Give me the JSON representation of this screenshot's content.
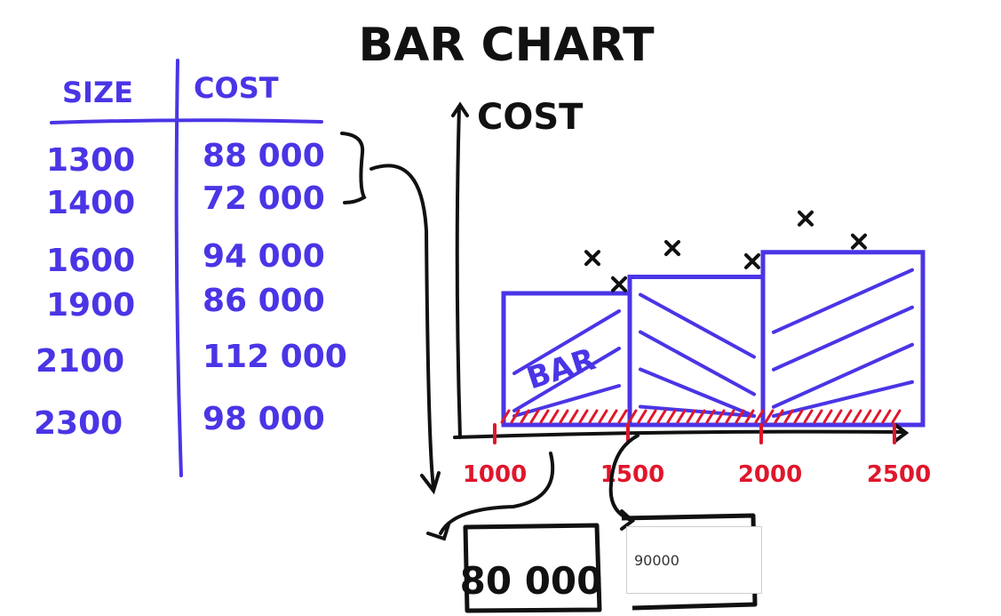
{
  "title": "BAR CHART",
  "table": {
    "headers": [
      "SIZE",
      "COST"
    ],
    "rows": [
      [
        "1300",
        "88 000"
      ],
      [
        "1400",
        "72 000"
      ],
      [
        "1600",
        "94 000"
      ],
      [
        "1900",
        "86 000"
      ],
      [
        "2100",
        "112 000"
      ],
      [
        "2300",
        "98 000"
      ]
    ]
  },
  "chart_data": {
    "type": "bar",
    "title": "BAR CHART",
    "ylabel": "COST",
    "xlabel": "",
    "x_ticks": [
      "1000",
      "1500",
      "2000",
      "2500"
    ],
    "bins": [
      {
        "from": 1000,
        "to": 1500,
        "value": 80000
      },
      {
        "from": 1500,
        "to": 2000,
        "value": 90000
      },
      {
        "from": 2000,
        "to": 2500,
        "value": 105000
      }
    ],
    "points": [
      {
        "x": 1300,
        "y": 88000
      },
      {
        "x": 1400,
        "y": 72000
      },
      {
        "x": 1600,
        "y": 94000
      },
      {
        "x": 1900,
        "y": 86000
      },
      {
        "x": 2100,
        "y": 112000
      },
      {
        "x": 2300,
        "y": 98000
      }
    ],
    "bar_annotation": "BAR",
    "grid": false
  },
  "answers": {
    "first_bin_value": "80 000",
    "second_bin_input": "90000"
  },
  "colors": {
    "ink_black": "#111111",
    "ink_blue": "#4a35e6",
    "ink_red": "#e0162b"
  }
}
